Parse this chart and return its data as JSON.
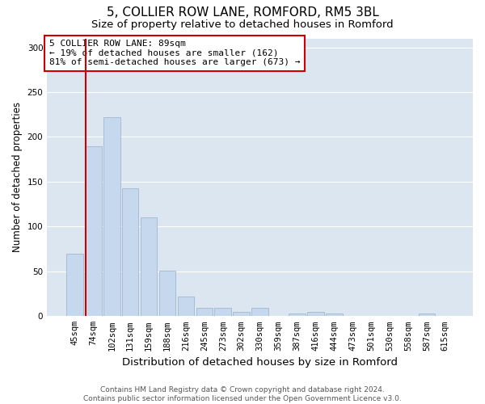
{
  "title_line1": "5, COLLIER ROW LANE, ROMFORD, RM5 3BL",
  "title_line2": "Size of property relative to detached houses in Romford",
  "xlabel": "Distribution of detached houses by size in Romford",
  "ylabel": "Number of detached properties",
  "categories": [
    "45sqm",
    "74sqm",
    "102sqm",
    "131sqm",
    "159sqm",
    "188sqm",
    "216sqm",
    "245sqm",
    "273sqm",
    "302sqm",
    "330sqm",
    "359sqm",
    "387sqm",
    "416sqm",
    "444sqm",
    "473sqm",
    "501sqm",
    "530sqm",
    "558sqm",
    "587sqm",
    "615sqm"
  ],
  "values": [
    70,
    190,
    222,
    143,
    110,
    51,
    22,
    9,
    9,
    5,
    9,
    0,
    3,
    5,
    3,
    0,
    0,
    0,
    0,
    3,
    0
  ],
  "bar_color": "#c5d8ed",
  "bar_edge_color": "#a0b8d0",
  "vline_color": "#cc0000",
  "annotation_text": "5 COLLIER ROW LANE: 89sqm\n← 19% of detached houses are smaller (162)\n81% of semi-detached houses are larger (673) →",
  "annotation_box_facecolor": "#ffffff",
  "annotation_box_edgecolor": "#cc0000",
  "ylim": [
    0,
    310
  ],
  "yticks": [
    0,
    50,
    100,
    150,
    200,
    250,
    300
  ],
  "plot_bg_color": "#dce6f0",
  "fig_bg_color": "#ffffff",
  "footer_line1": "Contains HM Land Registry data © Crown copyright and database right 2024.",
  "footer_line2": "Contains public sector information licensed under the Open Government Licence v3.0.",
  "title_fontsize": 11,
  "subtitle_fontsize": 9.5,
  "xlabel_fontsize": 9.5,
  "ylabel_fontsize": 8.5,
  "tick_fontsize": 7.5,
  "annotation_fontsize": 8,
  "footer_fontsize": 6.5
}
